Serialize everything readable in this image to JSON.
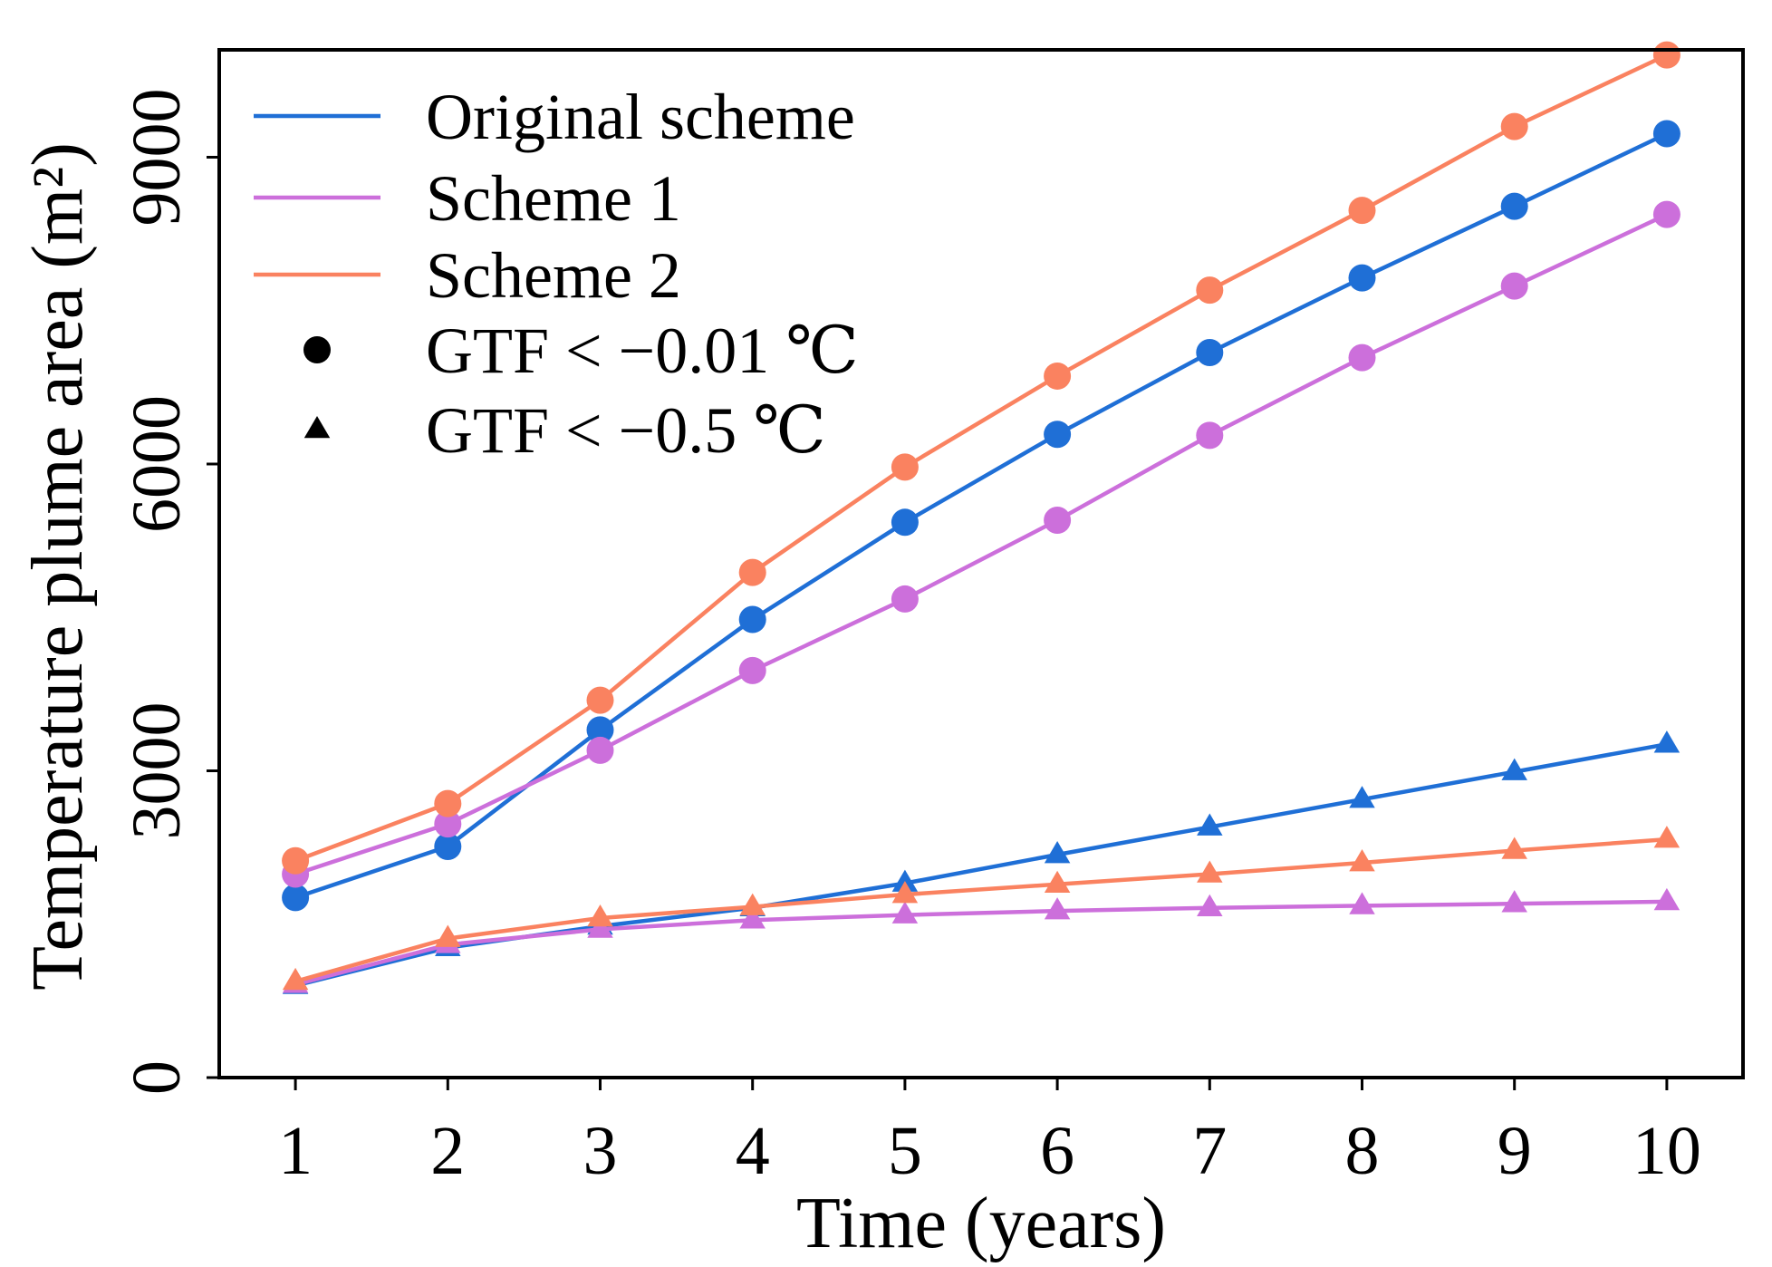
{
  "chart_data": {
    "type": "line",
    "xlabel": "Time (years)",
    "ylabel": "Temperature plume area (m²)",
    "x": [
      1,
      2,
      3,
      4,
      5,
      6,
      7,
      8,
      9,
      10
    ],
    "xlim": [
      0.5,
      10.5
    ],
    "ylim": [
      0,
      10050
    ],
    "yticks": [
      0,
      3000,
      6000,
      9000
    ],
    "xticks": [
      1,
      2,
      3,
      4,
      5,
      6,
      7,
      8,
      9,
      10
    ],
    "legend_placement": "top-left",
    "legend": [
      {
        "label": "Original scheme",
        "kind": "line",
        "color": "#1f6fd6"
      },
      {
        "label": "Scheme 1",
        "kind": "line",
        "color": "#cc6fdb"
      },
      {
        "label": "Scheme 2",
        "kind": "line",
        "color": "#fa8260"
      },
      {
        "label": "GTF < −0.01 ℃",
        "kind": "marker",
        "marker": "circle"
      },
      {
        "label": "GTF < −0.5 ℃",
        "kind": "marker",
        "marker": "triangle"
      }
    ],
    "series": [
      {
        "name": "Original scheme, GTF < −0.01 ℃",
        "scheme": "Original scheme",
        "color": "#1f6fd6",
        "marker": "circle",
        "values": [
          1760,
          2260,
          3400,
          4480,
          5430,
          6290,
          7090,
          7820,
          8520,
          9230
        ]
      },
      {
        "name": "Scheme 1, GTF < −0.01 ℃",
        "scheme": "Scheme 1",
        "color": "#cc6fdb",
        "marker": "circle",
        "values": [
          1990,
          2480,
          3200,
          3980,
          4680,
          5450,
          6280,
          7040,
          7740,
          8440
        ]
      },
      {
        "name": "Scheme 2, GTF < −0.01 ℃",
        "scheme": "Scheme 2",
        "color": "#fa8260",
        "marker": "circle",
        "values": [
          2120,
          2680,
          3690,
          4940,
          5970,
          6860,
          7700,
          8480,
          9300,
          10000
        ]
      },
      {
        "name": "Original scheme, GTF < −0.5 ℃",
        "scheme": "Original scheme",
        "color": "#1f6fd6",
        "marker": "triangle",
        "values": [
          900,
          1270,
          1480,
          1660,
          1900,
          2180,
          2450,
          2720,
          2990,
          3260
        ]
      },
      {
        "name": "Scheme 1, GTF < −0.5 ℃",
        "scheme": "Scheme 1",
        "color": "#cc6fdb",
        "marker": "triangle",
        "values": [
          910,
          1300,
          1450,
          1540,
          1590,
          1630,
          1660,
          1680,
          1700,
          1720
        ]
      },
      {
        "name": "Scheme 2, GTF < −0.5 ℃",
        "scheme": "Scheme 2",
        "color": "#fa8260",
        "marker": "triangle",
        "values": [
          940,
          1360,
          1560,
          1670,
          1790,
          1890,
          1990,
          2100,
          2220,
          2330
        ]
      }
    ]
  }
}
